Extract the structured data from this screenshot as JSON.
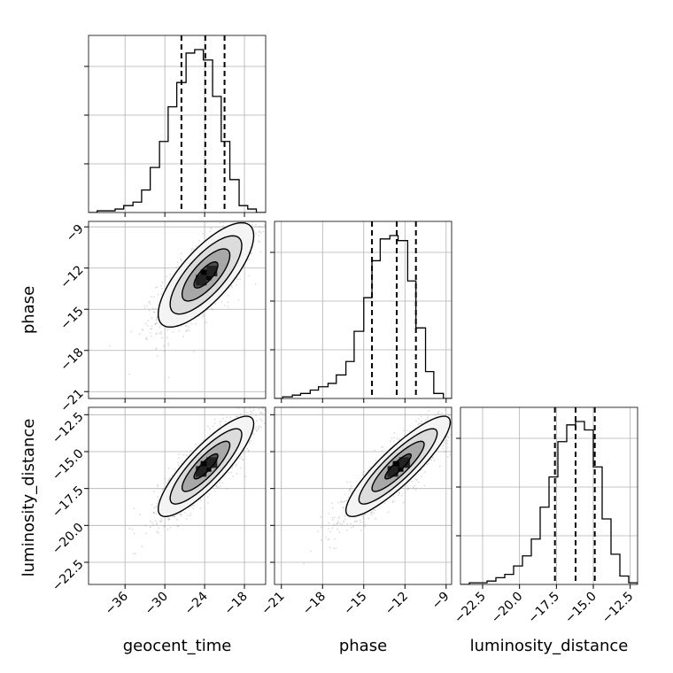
{
  "chart_data": {
    "type": "corner",
    "parameters": [
      "geocent_time",
      "phase",
      "luminosity_distance"
    ],
    "grid": true,
    "quantile_lines": "dashed",
    "tick_labels": {
      "geocent_time": [
        "−36",
        "−30",
        "−24",
        "−18"
      ],
      "phase": [
        "−21",
        "−18",
        "−15",
        "−12",
        "−9"
      ],
      "luminosity_distance": [
        "−22.5",
        "−20.0",
        "−17.5",
        "−15.0",
        "−12.5"
      ]
    },
    "ranges": {
      "geocent_time": [
        -41.5,
        -14.8
      ],
      "phase": [
        -21.5,
        -8.6
      ],
      "luminosity_distance": [
        -24.0,
        -12.0
      ]
    },
    "quantiles": {
      "geocent_time": [
        -27.5,
        -23.9,
        -21.0
      ],
      "phase": [
        -14.4,
        -12.6,
        -11.2
      ],
      "luminosity_distance": [
        -17.6,
        -16.2,
        -14.9
      ]
    },
    "histograms": {
      "geocent_time": {
        "bin_edges": [
          -41.5,
          -40.2,
          -38.8,
          -37.5,
          -36.2,
          -34.8,
          -33.5,
          -32.2,
          -30.8,
          -29.5,
          -28.2,
          -26.8,
          -25.5,
          -24.2,
          -22.8,
          -21.5,
          -20.2,
          -18.8,
          -17.5,
          -16.2,
          -14.8
        ],
        "counts": [
          0,
          1,
          1,
          2,
          4,
          6,
          13,
          26,
          41,
          61,
          75,
          92,
          94,
          88,
          67,
          41,
          19,
          4,
          2,
          0
        ]
      },
      "phase": {
        "bin_edges": [
          -21.5,
          -20.9,
          -20.2,
          -19.6,
          -18.9,
          -18.3,
          -17.6,
          -17.0,
          -16.3,
          -15.7,
          -15.0,
          -14.4,
          -13.8,
          -13.1,
          -12.5,
          -11.8,
          -11.2,
          -10.5,
          -9.9,
          -9.2,
          -8.6
        ],
        "counts": [
          0,
          1,
          2,
          3,
          5,
          7,
          9,
          14,
          22,
          40,
          60,
          82,
          95,
          97,
          94,
          70,
          42,
          16,
          3,
          0
        ]
      },
      "luminosity_distance": {
        "bin_edges": [
          -24.0,
          -23.4,
          -22.8,
          -22.2,
          -21.6,
          -21.0,
          -20.4,
          -19.8,
          -19.2,
          -18.6,
          -18.0,
          -17.4,
          -16.8,
          -16.2,
          -15.6,
          -15.0,
          -14.4,
          -13.8,
          -13.2,
          -12.6,
          -12.0
        ],
        "counts": [
          0,
          1,
          1,
          2,
          4,
          6,
          11,
          17,
          27,
          46,
          64,
          85,
          95,
          97,
          92,
          70,
          39,
          18,
          5,
          1
        ]
      }
    },
    "pairs": [
      {
        "x": "geocent_time",
        "y": "phase",
        "mean": [
          -23.8,
          -12.5
        ],
        "std": [
          3.6,
          1.9
        ],
        "correlation": 0.75,
        "contour_levels_sigma": [
          0.5,
          1.0,
          1.5,
          2.0
        ]
      },
      {
        "x": "geocent_time",
        "y": "luminosity_distance",
        "mean": [
          -23.8,
          -16.0
        ],
        "std": [
          3.6,
          1.7
        ],
        "correlation": 0.85,
        "contour_levels_sigma": [
          0.5,
          1.0,
          1.5,
          2.0
        ]
      },
      {
        "x": "phase",
        "y": "luminosity_distance",
        "mean": [
          -12.5,
          -16.0
        ],
        "std": [
          1.9,
          1.7
        ],
        "correlation": 0.88,
        "contour_levels_sigma": [
          0.5,
          1.0,
          1.5,
          2.0
        ]
      }
    ],
    "colors": {
      "line": "#000000",
      "grid": "#b0b0b0",
      "scatter": "#9a9a9a",
      "fill_levels": [
        "#f4f4f4",
        "#dcdcdc",
        "#a8a8a8",
        "#505050"
      ]
    }
  }
}
